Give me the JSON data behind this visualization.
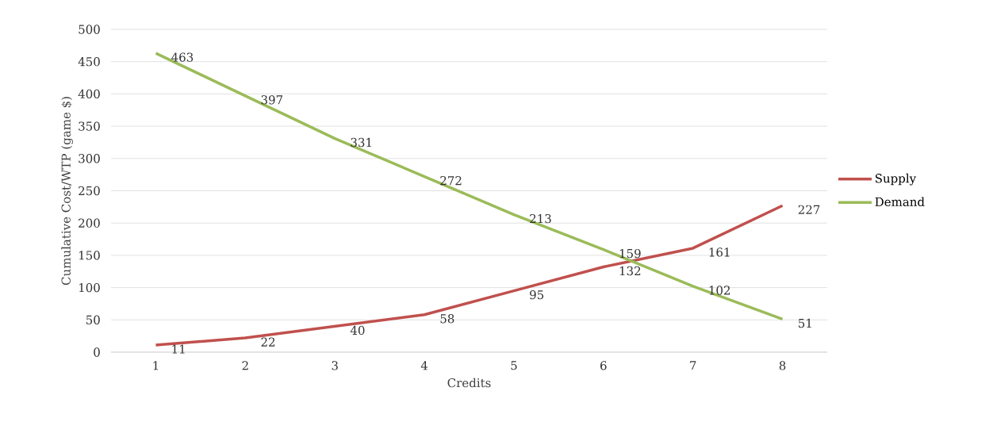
{
  "chart_data": {
    "type": "line",
    "xlabel": "Credits",
    "ylabel": "Cumulative Cost/WTP (game $)",
    "categories": [
      "1",
      "2",
      "3",
      "4",
      "5",
      "6",
      "7",
      "8"
    ],
    "series": [
      {
        "name": "Supply",
        "color": "#c0504d",
        "values": [
          11,
          22,
          40,
          58,
          95,
          132,
          161,
          227
        ]
      },
      {
        "name": "Demand",
        "color": "#9bbb59",
        "values": [
          463,
          397,
          331,
          272,
          213,
          159,
          102,
          51
        ]
      }
    ],
    "ylim": [
      0,
      500
    ],
    "yticks": [
      0,
      50,
      100,
      150,
      200,
      250,
      300,
      350,
      400,
      450,
      500
    ],
    "grid": "y",
    "legend": "right",
    "marker": "none",
    "line_style": "solid",
    "data_labels": true
  }
}
